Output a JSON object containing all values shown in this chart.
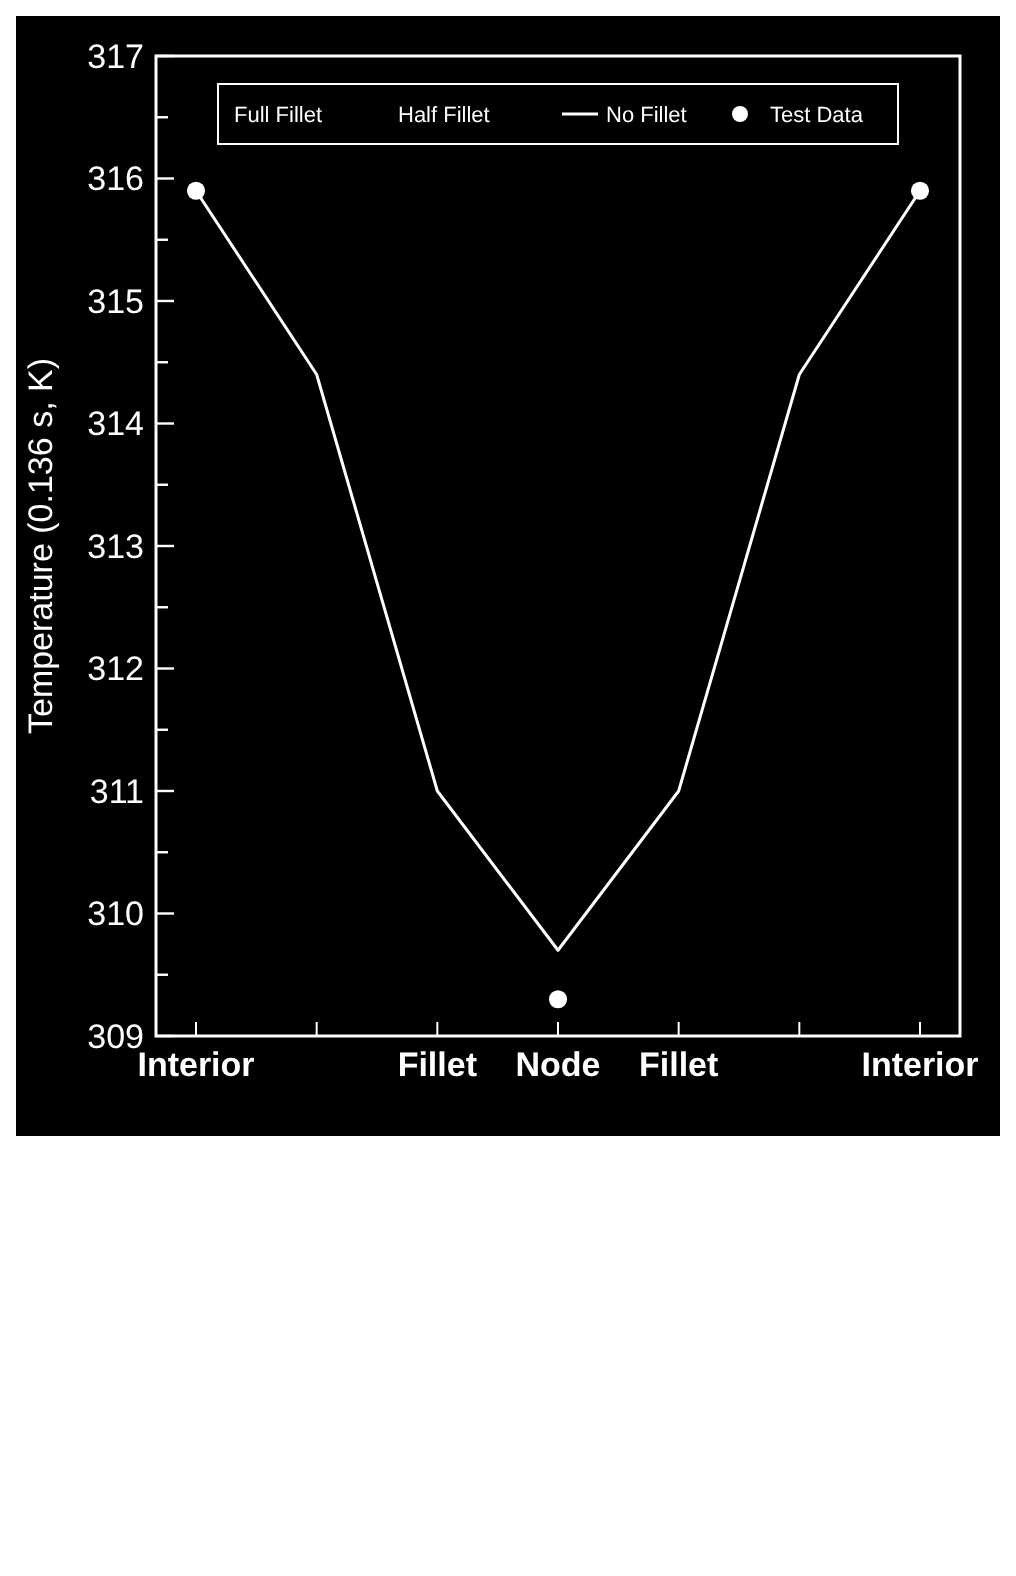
{
  "chart_data": {
    "type": "line",
    "ylabel": "Temperature (0.136 s, K)",
    "categories": [
      "Interior",
      null,
      "Fillet",
      "Node",
      "Fillet",
      null,
      "Interior"
    ],
    "series": [
      {
        "name": "No Fillet",
        "color": "#ffffff",
        "values": [
          315.9,
          314.4,
          311.0,
          309.7,
          311.0,
          314.4,
          315.9
        ],
        "marker": "none",
        "line_style": "solid"
      },
      {
        "name": "Test Data",
        "type": "scatter",
        "color": "#ffffff",
        "values": [
          315.9,
          null,
          null,
          309.3,
          null,
          null,
          315.9
        ],
        "marker": "circle"
      }
    ],
    "annotations": [
      "Full Fillet",
      "Half Fillet"
    ],
    "ylim": [
      309,
      317
    ],
    "yticks": [
      309,
      {
        "value": 309.5,
        "label": null
      },
      310,
      {
        "value": 310.5,
        "label": null
      },
      311,
      {
        "value": 311.5,
        "label": null
      },
      312,
      {
        "value": 312.5,
        "label": null
      },
      313,
      {
        "value": 313.5,
        "label": null
      },
      314,
      {
        "value": 314.5,
        "label": null
      },
      315,
      {
        "value": 315.5,
        "label": null
      },
      316,
      {
        "value": 316.5,
        "label": null
      },
      317
    ],
    "grid": false,
    "legend": "top"
  }
}
